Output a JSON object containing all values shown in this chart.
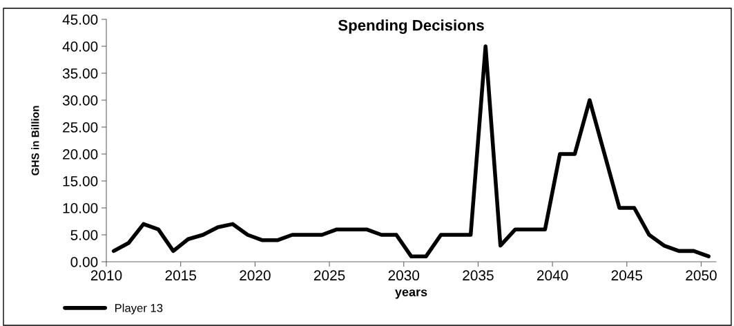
{
  "chart_data": {
    "type": "line",
    "title": "Spending Decisions",
    "xlabel": "years",
    "ylabel": "GHS in Billion",
    "x": [
      2010.5,
      2011.5,
      2012.5,
      2013.5,
      2014.5,
      2015.5,
      2016.5,
      2017.5,
      2018.5,
      2019.5,
      2020.5,
      2021.5,
      2022.5,
      2023.5,
      2024.5,
      2025.5,
      2026.5,
      2027.5,
      2028.5,
      2029.5,
      2030.5,
      2031.5,
      2032.5,
      2033.5,
      2034.5,
      2035.5,
      2036.5,
      2037.5,
      2038.5,
      2039.5,
      2040.5,
      2041.5,
      2042.5,
      2043.5,
      2044.5,
      2045.5,
      2046.5,
      2047.5,
      2048.5,
      2049.5,
      2050.5
    ],
    "series": [
      {
        "name": "Player 13",
        "color": "#000000",
        "values": [
          2,
          3.5,
          7,
          6,
          2,
          4.2,
          5,
          6.4,
          7,
          5,
          4,
          4,
          5,
          5,
          5,
          6,
          6,
          6,
          5,
          5,
          1,
          1,
          5,
          5,
          5,
          40,
          3,
          6,
          6,
          6,
          20,
          20,
          30,
          20,
          10,
          10,
          5,
          3,
          2,
          2,
          1
        ]
      }
    ],
    "xlim": [
      2010,
      2051
    ],
    "xticks": [
      2010,
      2015,
      2020,
      2025,
      2030,
      2035,
      2040,
      2045,
      2050
    ],
    "ylim": [
      0,
      45
    ],
    "yticks": [
      {
        "value": 0,
        "label": "0.00"
      },
      {
        "value": 5,
        "label": "5.00"
      },
      {
        "value": 10,
        "label": "10.00"
      },
      {
        "value": 15,
        "label": "15.00"
      },
      {
        "value": 20,
        "label": "20.00"
      },
      {
        "value": 25,
        "label": "25.00"
      },
      {
        "value": 30,
        "label": "30.00"
      },
      {
        "value": 35,
        "label": "35.00"
      },
      {
        "value": 40,
        "label": "40.00"
      },
      {
        "value": 45,
        "label": "45.00"
      }
    ],
    "grid": false,
    "legend": "bottom left",
    "marker": "none",
    "line_style": "solid"
  }
}
